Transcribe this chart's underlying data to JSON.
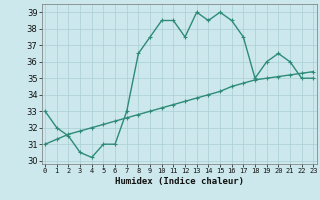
{
  "title": "",
  "xlabel": "Humidex (Indice chaleur)",
  "x": [
    0,
    1,
    2,
    3,
    4,
    5,
    6,
    7,
    8,
    9,
    10,
    11,
    12,
    13,
    14,
    15,
    16,
    17,
    18,
    19,
    20,
    21,
    22,
    23
  ],
  "curve1": [
    33,
    32,
    31.5,
    30.5,
    30.2,
    31,
    31.0,
    33,
    36.5,
    37.5,
    38.5,
    38.5,
    37.5,
    39,
    38.5,
    39,
    38.5,
    37.5,
    35,
    36,
    36.5,
    36,
    35,
    35
  ],
  "curve2": [
    31.0,
    31.3,
    31.6,
    31.8,
    32.0,
    32.2,
    32.4,
    32.6,
    32.8,
    33.0,
    33.2,
    33.4,
    33.6,
    33.8,
    34.0,
    34.2,
    34.5,
    34.7,
    34.9,
    35.0,
    35.1,
    35.2,
    35.3,
    35.4
  ],
  "color": "#2d8b78",
  "bg_color": "#cce8ec",
  "grid_color": "#aacdd4",
  "ylim": [
    29.8,
    39.5
  ],
  "yticks": [
    30,
    31,
    32,
    33,
    34,
    35,
    36,
    37,
    38,
    39
  ],
  "xlim": [
    -0.3,
    23.3
  ],
  "markersize": 3,
  "linewidth": 1.0
}
